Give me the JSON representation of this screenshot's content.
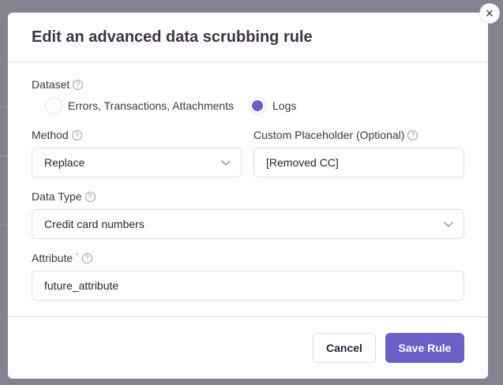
{
  "modal": {
    "title": "Edit an advanced data scrubbing rule",
    "dataset": {
      "label": "Dataset",
      "options": [
        "Errors, Transactions, Attachments",
        "Logs"
      ],
      "selected": "Logs"
    },
    "method": {
      "label": "Method",
      "value": "Replace"
    },
    "placeholder": {
      "label": "Custom Placeholder (Optional)",
      "value": "[Removed CC]"
    },
    "data_type": {
      "label": "Data Type",
      "value": "Credit card numbers"
    },
    "attribute": {
      "label": "Attribute",
      "required_mark": "*",
      "value": "future_attribute"
    },
    "cancel_label": "Cancel",
    "save_label": "Save Rule",
    "help_glyph": "?",
    "close_glyph": "×"
  },
  "colors": {
    "accent": "#6c5fc7",
    "overlay": "#86818f"
  }
}
